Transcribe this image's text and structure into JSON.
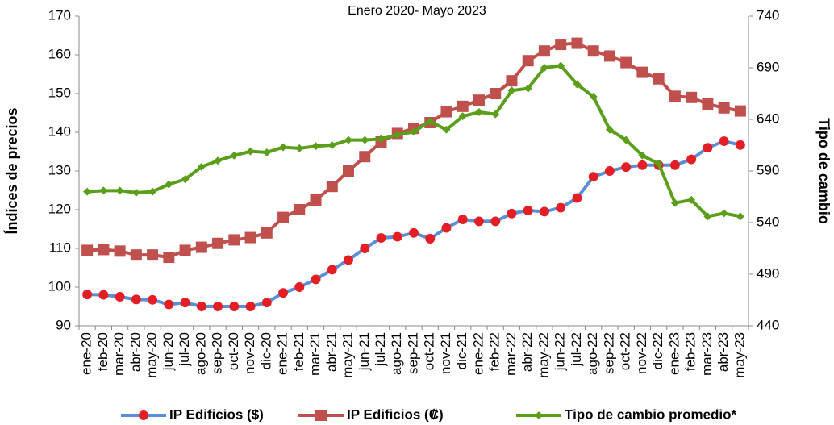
{
  "chart_data": {
    "type": "line",
    "title": "Enero 2020- Mayo 2023",
    "y_label": "Índices de precios",
    "y2_label": "Tipo de cambio",
    "categories": [
      "ene-20",
      "feb-20",
      "mar-20",
      "abr-20",
      "may-20",
      "jun-20",
      "jul-20",
      "ago-20",
      "sep-20",
      "oct-20",
      "nov-20",
      "dic-20",
      "ene-21",
      "feb-21",
      "mar-21",
      "abr-21",
      "may-21",
      "jun-21",
      "jul-21",
      "ago-21",
      "sep-21",
      "oct-21",
      "nov-21",
      "dic-21",
      "ene-22",
      "feb-22",
      "mar-22",
      "abr-22",
      "may-22",
      "jun-22",
      "jul-22",
      "ago-22",
      "sep-22",
      "oct-22",
      "nov-22",
      "dic-22",
      "ene-23",
      "feb-23",
      "mar-23",
      "abr-23",
      "may-23"
    ],
    "series": [
      {
        "name": "IP Edificios ($)",
        "color": "#5b8ed6",
        "marker_color": "#e41e25",
        "marker": "circle",
        "values": [
          98.1,
          98,
          97.5,
          96.8,
          96.7,
          95.5,
          96,
          95,
          95,
          95,
          95,
          96,
          98.5,
          100,
          102,
          104.5,
          107,
          110,
          112.7,
          113,
          114,
          112.5,
          115.3,
          117.5,
          117,
          117,
          119,
          119.8,
          119.5,
          120.5,
          123,
          128.5,
          130,
          131,
          131.5,
          131.5,
          131.5,
          133,
          136,
          137.7,
          136.7
        ]
      },
      {
        "name": "IP Edificios (₡)",
        "color": "#c0504d",
        "marker_color": "#c0504d",
        "marker": "square",
        "values": [
          109.5,
          109.7,
          109.3,
          108.3,
          108.3,
          107.7,
          109.5,
          110.3,
          111.3,
          112.2,
          112.8,
          114,
          118,
          120,
          122.5,
          126,
          130,
          133.7,
          137.5,
          139.7,
          141,
          142.5,
          145.3,
          146.7,
          148.3,
          150,
          153.3,
          158.5,
          161,
          162.7,
          163,
          161,
          159.7,
          158,
          155.5,
          153.8,
          149.3,
          149,
          147.3,
          146.3,
          145.5
        ]
      },
      {
        "name": "Tipo de cambio promedio*",
        "color": "#5a9e1a",
        "marker_color": "#5a9e1a",
        "marker": "diamond",
        "axis": "y2",
        "values": [
          570,
          571,
          571,
          569,
          570,
          577,
          582,
          594,
          600,
          605,
          609,
          608,
          613,
          612,
          614,
          615,
          620,
          620,
          621,
          625,
          628,
          638,
          630,
          643,
          647,
          645,
          668,
          670,
          690,
          692,
          674,
          662,
          630,
          620,
          605,
          597,
          559,
          562,
          546,
          549,
          546
        ]
      }
    ],
    "ylim": [
      90,
      170
    ],
    "yticks": [
      90,
      100,
      110,
      120,
      130,
      140,
      150,
      160,
      170
    ],
    "y2lim": [
      440,
      740
    ],
    "y2ticks": [
      440,
      490,
      540,
      590,
      640,
      690,
      740
    ],
    "grid": false,
    "legend": "bottom"
  }
}
